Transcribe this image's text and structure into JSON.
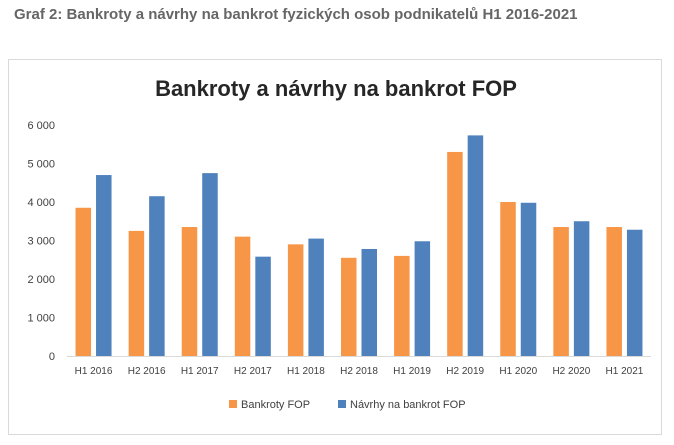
{
  "page": {
    "heading": "Graf 2: Bankroty a návrhy na bankrot fyzických osob podnikatelů H1 2016-2021"
  },
  "chart_data": {
    "type": "bar",
    "title": "Bankroty a návrhy na bankrot FOP",
    "xlabel": "",
    "ylabel": "",
    "ylim": [
      0,
      6000
    ],
    "yticks": [
      "0",
      "1 000",
      "2 000",
      "3 000",
      "4 000",
      "5 000",
      "6 000"
    ],
    "ytick_values": [
      0,
      1000,
      2000,
      3000,
      4000,
      5000,
      6000
    ],
    "grid": false,
    "legend_position": "bottom",
    "categories": [
      "H1 2016",
      "H2 2016",
      "H1 2017",
      "H2 2017",
      "H1 2018",
      "H2 2018",
      "H1 2019",
      "H2 2019",
      "H1 2020",
      "H2 2020",
      "H1 2021"
    ],
    "series": [
      {
        "name": "Bankroty FOP",
        "color": "#f79646",
        "values": [
          3850,
          3250,
          3350,
          3100,
          2900,
          2550,
          2600,
          5300,
          4000,
          3350,
          3350
        ]
      },
      {
        "name": "Návrhy na bankrot FOP",
        "color": "#4f81bd",
        "values": [
          4700,
          4150,
          4750,
          2580,
          3050,
          2780,
          2980,
          5730,
          3980,
          3500,
          3280
        ]
      }
    ]
  }
}
